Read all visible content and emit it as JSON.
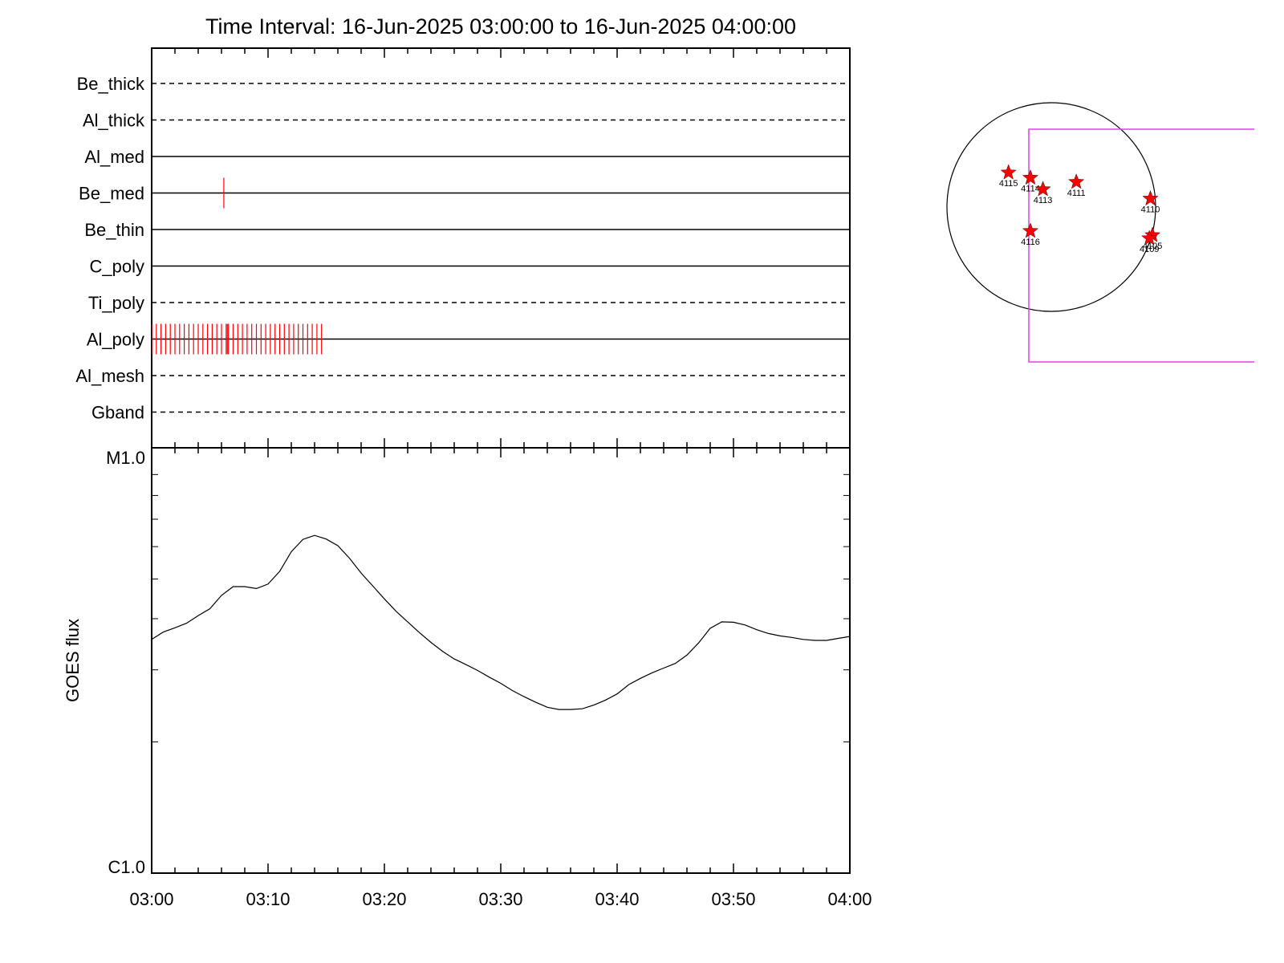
{
  "title": "Time Interval: 16-Jun-2025 03:00:00 to 16-Jun-2025 04:00:00",
  "colors": {
    "events": "#ff0000",
    "fov": "#e040e0",
    "line": "#000000"
  },
  "chart_data": [
    {
      "type": "timeline",
      "x_range": [
        "03:00",
        "04:00"
      ],
      "rows": [
        {
          "name": "Be_thick",
          "style": "dashed",
          "events": []
        },
        {
          "name": "Al_thick",
          "style": "dashed",
          "events": []
        },
        {
          "name": "Al_med",
          "style": "solid",
          "events": []
        },
        {
          "name": "Be_med",
          "style": "solid",
          "events": [
            6.2
          ]
        },
        {
          "name": "Be_thin",
          "style": "solid",
          "events": []
        },
        {
          "name": "C_poly",
          "style": "solid",
          "events": []
        },
        {
          "name": "Ti_poly",
          "style": "dashed",
          "events": []
        },
        {
          "name": "Al_poly",
          "style": "solid",
          "events": [
            0.05,
            0.4,
            0.8,
            1.2,
            1.6,
            2.0,
            2.4,
            2.8,
            3.2,
            3.6,
            4.0,
            4.4,
            4.8,
            5.2,
            5.6,
            6.0,
            6.4,
            6.5,
            6.6,
            7.0,
            7.4,
            7.8,
            8.2,
            8.6,
            9.0,
            9.4,
            9.8,
            10.2,
            10.6,
            11.0,
            11.4,
            11.8,
            12.2,
            12.6,
            13.0,
            13.4,
            13.8,
            14.2,
            14.6
          ]
        },
        {
          "name": "Al_mesh",
          "style": "dashed",
          "events": []
        },
        {
          "name": "Gband",
          "style": "dashed",
          "events": []
        }
      ]
    },
    {
      "type": "line",
      "ylabel": "GOES flux",
      "yscale": "log",
      "y_ticks": [
        "M1.0",
        "C1.0"
      ],
      "ylim": [
        1e-06,
        1e-05
      ],
      "x_tick_labels": [
        "03:00",
        "03:10",
        "03:20",
        "03:30",
        "03:40",
        "03:50",
        "04:00"
      ],
      "x_minutes": [
        0,
        1,
        2,
        3,
        4,
        5,
        6,
        7,
        8,
        9,
        10,
        11,
        12,
        13,
        14,
        15,
        16,
        17,
        18,
        19,
        20,
        21,
        22,
        23,
        24,
        25,
        26,
        27,
        28,
        29,
        30,
        31,
        32,
        33,
        34,
        35,
        36,
        37,
        38,
        39,
        40,
        41,
        42,
        43,
        44,
        45,
        46,
        47,
        48,
        49,
        50,
        51,
        52,
        53,
        54,
        55,
        56,
        57,
        58,
        59,
        60
      ],
      "values": [
        3.56e-06,
        3.71e-06,
        3.8e-06,
        3.9e-06,
        4.07e-06,
        4.23e-06,
        4.56e-06,
        4.79e-06,
        4.79e-06,
        4.74e-06,
        4.86e-06,
        5.22e-06,
        5.83e-06,
        6.25e-06,
        6.39e-06,
        6.26e-06,
        6.03e-06,
        5.62e-06,
        5.17e-06,
        4.81e-06,
        4.47e-06,
        4.17e-06,
        3.93e-06,
        3.7e-06,
        3.5e-06,
        3.33e-06,
        3.19e-06,
        3.09e-06,
        2.99e-06,
        2.88e-06,
        2.78e-06,
        2.67e-06,
        2.58e-06,
        2.5e-06,
        2.43e-06,
        2.4e-06,
        2.4e-06,
        2.41e-06,
        2.46e-06,
        2.53e-06,
        2.62e-06,
        2.76e-06,
        2.86e-06,
        2.95e-06,
        3.03e-06,
        3.11e-06,
        3.26e-06,
        3.49e-06,
        3.79e-06,
        3.93e-06,
        3.92e-06,
        3.86e-06,
        3.76e-06,
        3.68e-06,
        3.63e-06,
        3.6e-06,
        3.56e-06,
        3.54e-06,
        3.54e-06,
        3.58e-06,
        3.62e-06
      ]
    },
    {
      "type": "scatter",
      "regions": [
        {
          "label": "4115",
          "x": -0.41,
          "y": 0.33
        },
        {
          "label": "4114",
          "x": -0.2,
          "y": 0.28
        },
        {
          "label": "4113",
          "x": -0.08,
          "y": 0.17
        },
        {
          "label": "4111",
          "x": 0.24,
          "y": 0.24
        },
        {
          "label": "4110",
          "x": 0.95,
          "y": 0.08
        },
        {
          "label": "4116",
          "x": -0.2,
          "y": -0.23
        },
        {
          "label": "4105",
          "x": 0.97,
          "y": -0.27
        },
        {
          "label": "4109",
          "x": 0.94,
          "y": -0.3
        }
      ]
    }
  ]
}
